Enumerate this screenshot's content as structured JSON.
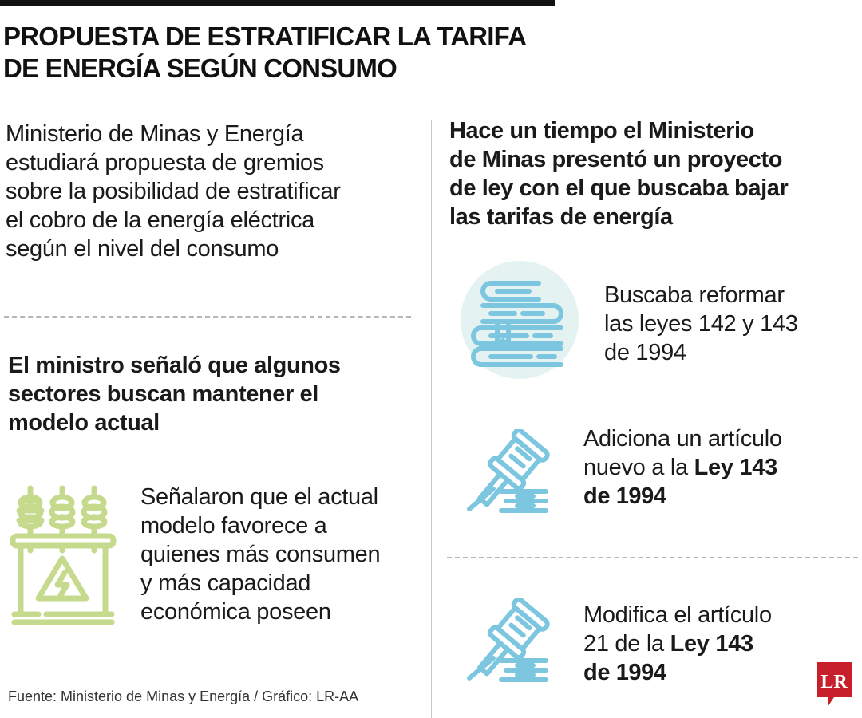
{
  "title": {
    "line1": "PROPUESTA DE ESTRATIFICAR LA TARIFA",
    "line2": "DE ENERGÍA SEGÚN CONSUMO"
  },
  "left": {
    "intro": [
      "Ministerio de Minas y Energía",
      "estudiará propuesta de gremios",
      "sobre la posibilidad de estratificar",
      "el cobro de la energía eléctrica",
      "según el nivel del consumo"
    ],
    "heading": [
      "El ministro señaló que algunos",
      "sectores buscan mantener el",
      "modelo actual"
    ],
    "transformer_text": [
      "Señalaron que el actual",
      "modelo favorece a",
      "quienes más consumen",
      "y más capacidad",
      "económica poseen"
    ]
  },
  "right": {
    "heading": [
      "Hace un tiempo el Ministerio",
      "de Minas presentó un proyecto",
      "de ley con el que buscaba bajar",
      "las tarifas de energía"
    ],
    "item1": [
      "Buscaba reformar",
      "las leyes 142 y 143",
      "de 1994"
    ],
    "item2": {
      "l1": "Adiciona un artículo",
      "l2a": "nuevo a la ",
      "l2b": "Ley 143",
      "l3": "de 1994"
    },
    "item3": {
      "l1": "Modifica el artículo",
      "l2a": "21 de la ",
      "l2b": "Ley 143",
      "l3": "de 1994"
    }
  },
  "footer": "Fuente: Ministerio de Minas y Energía / Gráfico: LR-AA",
  "logo": "LR",
  "colors": {
    "blue_icon": "#7cc6df",
    "green_icon": "#c5da8c",
    "circle": "#e5f2f2",
    "logo_red": "#c8202a"
  }
}
